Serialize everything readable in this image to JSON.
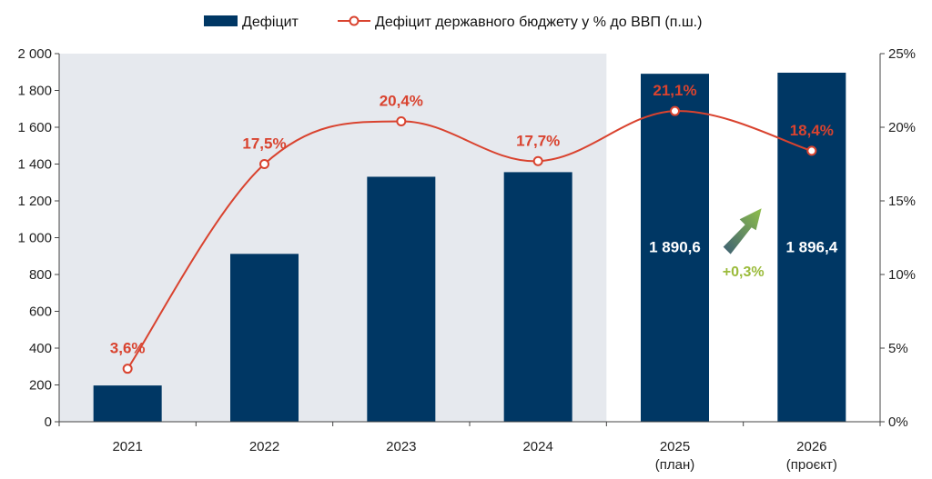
{
  "chart_data": {
    "type": "bar",
    "categories": [
      "2021",
      "2022",
      "2023",
      "2024",
      "2025",
      "2026"
    ],
    "category_sublabels": [
      "",
      "",
      "",
      "",
      "(план)",
      "(проєкт)"
    ],
    "series": [
      {
        "name": "Дефіцит",
        "type": "bar",
        "axis": "left",
        "values": [
          197,
          912,
          1331,
          1356,
          1890.6,
          1896.4
        ],
        "data_labels": [
          "",
          "",
          "",
          "",
          "1 890,6",
          "1 896,4"
        ],
        "color": "#003764"
      },
      {
        "name": "Дефіцит державного бюджету у % до ВВП (п.ш.)",
        "type": "line",
        "axis": "right",
        "values": [
          3.6,
          17.5,
          20.4,
          17.7,
          21.1,
          18.4
        ],
        "data_labels": [
          "3,6%",
          "17,5%",
          "20,4%",
          "17,7%",
          "21,1%",
          "18,4%"
        ],
        "color": "#d9432f"
      }
    ],
    "y_left": {
      "min": 0,
      "max": 2000,
      "step": 200,
      "tick_labels": [
        "0",
        "200",
        "400",
        "600",
        "800",
        "1 000",
        "1 200",
        "1 400",
        "1 600",
        "1 800",
        "2 000"
      ]
    },
    "y_right": {
      "min": 0,
      "max": 25,
      "step": 5,
      "tick_labels": [
        "0%",
        "5%",
        "10%",
        "15%",
        "20%",
        "25%"
      ]
    },
    "shaded_categories": [
      "2021",
      "2022",
      "2023",
      "2024"
    ],
    "shade_color": "#e6e9ee",
    "annotation": {
      "text": "+0,3%",
      "color": "#9bbb3b",
      "between": [
        "2025",
        "2026"
      ]
    },
    "legend_position": "top",
    "grid": false
  }
}
